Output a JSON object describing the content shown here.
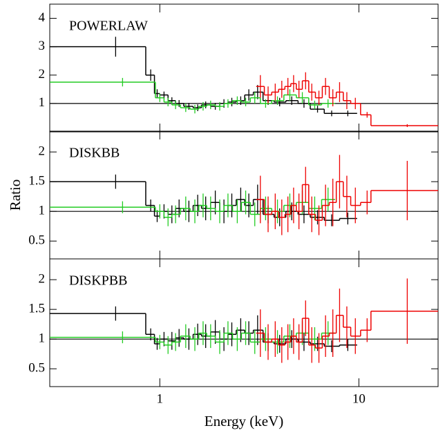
{
  "chart_data": [
    {
      "type": "step",
      "annotation": "POWERLAW",
      "xlim": [
        0.28,
        25
      ],
      "xticks": [
        1,
        10
      ],
      "xscale": "log",
      "ylim": [
        0,
        4.5
      ],
      "yticks": [
        1,
        2,
        3,
        4
      ],
      "reference_line": 1,
      "series": [
        {
          "color": "#000000",
          "bins": [
            0.28,
            0.85,
            0.94,
            1.0,
            1.1,
            1.2,
            1.32,
            1.47,
            1.62,
            1.8,
            2.0,
            2.2,
            2.42,
            2.67,
            2.95,
            3.3,
            3.75,
            4.3,
            4.95,
            5.7,
            6.7,
            8.0,
            9.8
          ],
          "x": [
            0.6,
            0.9,
            0.97,
            1.05,
            1.15,
            1.25,
            1.4,
            1.55,
            1.7,
            1.9,
            2.1,
            2.3,
            2.55,
            2.8,
            3.1,
            3.5,
            4.0,
            4.6,
            5.3,
            6.2,
            7.3,
            8.8
          ],
          "values": [
            3.0,
            2.0,
            1.35,
            1.3,
            1.1,
            1.0,
            0.9,
            0.85,
            0.95,
            0.9,
            1.0,
            1.05,
            1.1,
            1.3,
            1.4,
            1.1,
            1.05,
            1.1,
            1.0,
            0.8,
            0.65,
            0.65
          ],
          "errors": [
            0.35,
            0.2,
            0.15,
            0.12,
            0.12,
            0.12,
            0.12,
            0.12,
            0.12,
            0.12,
            0.15,
            0.15,
            0.15,
            0.2,
            0.25,
            0.15,
            0.15,
            0.15,
            0.15,
            0.12,
            0.1,
            0.1
          ]
        },
        {
          "color": "#22cc22",
          "bins": [
            0.28,
            0.95,
            1.05,
            1.15,
            1.27,
            1.42,
            1.57,
            1.72,
            1.9,
            2.1,
            2.32,
            2.57,
            2.85,
            3.2,
            3.65,
            4.2,
            4.85,
            5.6,
            6.5,
            7.6
          ],
          "x": [
            0.65,
            1.0,
            1.1,
            1.2,
            1.35,
            1.5,
            1.65,
            1.8,
            2.0,
            2.2,
            2.45,
            2.7,
            3.0,
            3.4,
            3.9,
            4.5,
            5.2,
            6.0,
            7.0
          ],
          "values": [
            1.75,
            1.2,
            1.05,
            0.95,
            0.85,
            0.8,
            0.9,
            0.95,
            0.9,
            1.0,
            1.1,
            1.05,
            1.2,
            1.0,
            1.1,
            1.3,
            1.2,
            0.95,
            1.0
          ],
          "errors": [
            0.15,
            0.15,
            0.15,
            0.15,
            0.15,
            0.15,
            0.15,
            0.15,
            0.15,
            0.15,
            0.15,
            0.15,
            0.2,
            0.15,
            0.15,
            0.2,
            0.2,
            0.15,
            0.15
          ]
        },
        {
          "color": "#ee0000",
          "bins": [
            3.05,
            3.35,
            3.65,
            3.95,
            4.25,
            4.55,
            4.85,
            5.2,
            5.6,
            6.05,
            6.55,
            7.1,
            7.7,
            8.35,
            9.1,
            10.2,
            11.5,
            25
          ],
          "x": [
            3.2,
            3.5,
            3.8,
            4.1,
            4.4,
            4.7,
            5.0,
            5.4,
            5.8,
            6.3,
            6.8,
            7.4,
            8.0,
            8.7,
            9.6,
            11.0,
            17.5
          ],
          "values": [
            1.6,
            1.3,
            1.4,
            1.5,
            1.6,
            1.7,
            1.5,
            1.8,
            1.4,
            1.2,
            1.6,
            1.2,
            1.4,
            1.1,
            1.0,
            0.6,
            0.22
          ],
          "errors": [
            0.4,
            0.3,
            0.3,
            0.3,
            0.3,
            0.3,
            0.3,
            0.3,
            0.3,
            0.25,
            0.3,
            0.3,
            0.35,
            0.3,
            0.2,
            0.1,
            0.05
          ]
        }
      ]
    },
    {
      "type": "step",
      "annotation": "DISKBB",
      "ylabel": "Ratio",
      "xlim": [
        0.28,
        25
      ],
      "xticks": [
        1,
        10
      ],
      "xscale": "log",
      "ylim": [
        0.2,
        2.35
      ],
      "yticks": [
        0.5,
        1,
        1.5,
        2
      ],
      "reference_line": 1,
      "series": [
        {
          "color": "#000000",
          "bins": [
            0.28,
            0.85,
            0.94,
            1.0,
            1.1,
            1.2,
            1.32,
            1.47,
            1.62,
            1.8,
            2.0,
            2.2,
            2.42,
            2.67,
            2.95,
            3.3,
            3.75,
            4.3,
            4.95,
            5.7,
            6.7,
            8.0,
            9.8
          ],
          "x": [
            0.6,
            0.9,
            0.97,
            1.05,
            1.15,
            1.25,
            1.4,
            1.55,
            1.7,
            1.9,
            2.1,
            2.3,
            2.55,
            2.8,
            3.1,
            3.5,
            4.0,
            4.6,
            5.3,
            6.2,
            7.3,
            8.8
          ],
          "values": [
            1.5,
            1.1,
            0.92,
            1.0,
            0.95,
            1.05,
            1.0,
            1.1,
            1.05,
            1.15,
            1.0,
            1.1,
            1.2,
            1.1,
            1.2,
            0.95,
            0.9,
            1.0,
            0.95,
            0.9,
            0.85,
            0.88
          ],
          "errors": [
            0.12,
            0.1,
            0.1,
            0.12,
            0.15,
            0.15,
            0.18,
            0.18,
            0.2,
            0.2,
            0.2,
            0.2,
            0.2,
            0.2,
            0.25,
            0.15,
            0.15,
            0.15,
            0.15,
            0.12,
            0.1,
            0.1
          ]
        },
        {
          "color": "#22cc22",
          "bins": [
            0.28,
            0.95,
            1.05,
            1.15,
            1.27,
            1.42,
            1.57,
            1.72,
            1.9,
            2.1,
            2.32,
            2.57,
            2.85,
            3.2,
            3.65,
            4.2,
            4.85,
            5.6,
            6.5,
            7.6
          ],
          "x": [
            0.65,
            1.0,
            1.1,
            1.2,
            1.35,
            1.5,
            1.65,
            1.8,
            2.0,
            2.2,
            2.45,
            2.7,
            3.0,
            3.4,
            3.9,
            4.5,
            5.2,
            6.0,
            7.0
          ],
          "values": [
            1.07,
            1.0,
            0.9,
            0.95,
            1.05,
            1.0,
            1.1,
            1.05,
            1.0,
            1.1,
            1.0,
            1.15,
            0.95,
            1.05,
            1.0,
            1.1,
            1.15,
            1.05,
            1.2
          ],
          "errors": [
            0.1,
            0.12,
            0.15,
            0.15,
            0.2,
            0.2,
            0.2,
            0.2,
            0.2,
            0.2,
            0.2,
            0.2,
            0.2,
            0.2,
            0.2,
            0.2,
            0.2,
            0.2,
            0.2
          ]
        },
        {
          "color": "#ee0000",
          "bins": [
            3.05,
            3.35,
            3.65,
            3.95,
            4.25,
            4.55,
            4.85,
            5.2,
            5.6,
            6.05,
            6.55,
            7.1,
            7.7,
            8.35,
            9.1,
            10.2,
            11.5,
            25
          ],
          "x": [
            3.2,
            3.5,
            3.8,
            4.1,
            4.4,
            4.7,
            5.0,
            5.4,
            5.8,
            6.3,
            6.8,
            7.4,
            8.0,
            8.7,
            9.6,
            11.0,
            17.5
          ],
          "values": [
            1.2,
            0.95,
            1.0,
            0.9,
            0.95,
            1.1,
            1.0,
            1.45,
            0.95,
            0.85,
            1.1,
            1.15,
            1.5,
            1.25,
            1.1,
            1.15,
            1.35
          ],
          "errors": [
            0.4,
            0.3,
            0.3,
            0.3,
            0.3,
            0.3,
            0.3,
            0.3,
            0.3,
            0.25,
            0.35,
            0.4,
            0.45,
            0.35,
            0.3,
            0.2,
            0.5
          ]
        }
      ]
    },
    {
      "type": "step",
      "annotation": "DISKPBB",
      "xlabel": "Energy (keV)",
      "xlim": [
        0.28,
        25
      ],
      "xticks": [
        1,
        10
      ],
      "xscale": "log",
      "xticklabels": true,
      "ylim": [
        0.2,
        2.35
      ],
      "yticks": [
        0.5,
        1,
        1.5,
        2
      ],
      "reference_line": 1,
      "series": [
        {
          "color": "#000000",
          "bins": [
            0.28,
            0.85,
            0.94,
            1.0,
            1.1,
            1.2,
            1.32,
            1.47,
            1.62,
            1.8,
            2.0,
            2.2,
            2.42,
            2.67,
            2.95,
            3.3,
            3.75,
            4.3,
            4.95,
            5.7,
            6.7,
            8.0,
            9.8
          ],
          "x": [
            0.6,
            0.9,
            0.97,
            1.05,
            1.15,
            1.25,
            1.4,
            1.55,
            1.7,
            1.9,
            2.1,
            2.3,
            2.55,
            2.8,
            3.1,
            3.5,
            4.0,
            4.6,
            5.3,
            6.2,
            7.3,
            8.8
          ],
          "values": [
            1.43,
            1.08,
            0.92,
            1.0,
            0.97,
            1.02,
            1.0,
            1.08,
            1.05,
            1.12,
            1.0,
            1.08,
            1.15,
            1.1,
            1.15,
            0.95,
            0.92,
            1.0,
            0.95,
            0.92,
            0.88,
            0.9
          ],
          "errors": [
            0.12,
            0.1,
            0.1,
            0.12,
            0.15,
            0.15,
            0.18,
            0.18,
            0.2,
            0.2,
            0.2,
            0.2,
            0.2,
            0.2,
            0.25,
            0.15,
            0.15,
            0.15,
            0.15,
            0.12,
            0.1,
            0.1
          ]
        },
        {
          "color": "#22cc22",
          "bins": [
            0.28,
            0.95,
            1.05,
            1.15,
            1.27,
            1.42,
            1.57,
            1.72,
            1.9,
            2.1,
            2.32,
            2.57,
            2.85,
            3.2,
            3.65,
            4.2,
            4.85,
            5.6,
            6.5,
            7.6
          ],
          "x": [
            0.65,
            1.0,
            1.1,
            1.2,
            1.35,
            1.5,
            1.65,
            1.8,
            2.0,
            2.2,
            2.45,
            2.7,
            3.0,
            3.4,
            3.9,
            4.5,
            5.2,
            6.0,
            7.0
          ],
          "values": [
            1.03,
            0.95,
            0.9,
            0.95,
            1.05,
            1.0,
            1.1,
            1.05,
            0.95,
            1.1,
            1.0,
            1.1,
            0.95,
            1.0,
            0.95,
            1.05,
            1.1,
            1.0,
            1.1
          ],
          "errors": [
            0.1,
            0.12,
            0.15,
            0.15,
            0.2,
            0.2,
            0.2,
            0.2,
            0.2,
            0.2,
            0.2,
            0.2,
            0.2,
            0.2,
            0.2,
            0.2,
            0.2,
            0.2,
            0.2
          ]
        },
        {
          "color": "#ee0000",
          "bins": [
            3.05,
            3.35,
            3.65,
            3.95,
            4.25,
            4.55,
            4.85,
            5.2,
            5.6,
            6.05,
            6.55,
            7.1,
            7.7,
            8.35,
            9.1,
            10.2,
            11.5,
            25
          ],
          "x": [
            3.2,
            3.5,
            3.8,
            4.1,
            4.4,
            4.7,
            5.0,
            5.4,
            5.8,
            6.3,
            6.8,
            7.4,
            8.0,
            8.7,
            9.6,
            11.0,
            17.5
          ],
          "values": [
            1.1,
            0.95,
            1.0,
            0.9,
            0.95,
            1.05,
            0.95,
            1.35,
            0.9,
            0.85,
            1.05,
            1.1,
            1.4,
            1.2,
            1.05,
            1.15,
            1.47
          ],
          "errors": [
            0.4,
            0.3,
            0.3,
            0.3,
            0.3,
            0.3,
            0.3,
            0.3,
            0.3,
            0.25,
            0.35,
            0.4,
            0.45,
            0.35,
            0.3,
            0.2,
            0.55
          ]
        }
      ]
    }
  ]
}
